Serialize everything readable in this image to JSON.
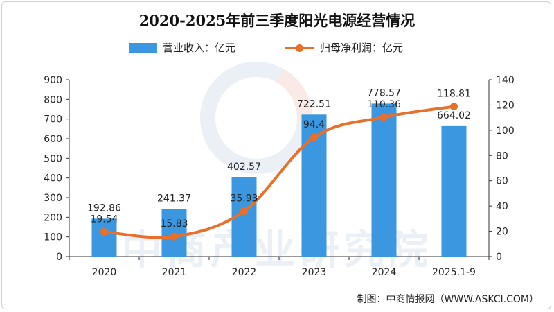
{
  "title": "2020-2025年前三季度阳光电源经营情况",
  "source": "制图：中商情报网（WWW.ASKCI.COM）",
  "watermark": "中商产业研究院",
  "chart_data": {
    "type": "bar",
    "categories": [
      "2020",
      "2021",
      "2022",
      "2023",
      "2024",
      "2025.1-9"
    ],
    "series": [
      {
        "name": "营业收入：亿元",
        "type": "bar",
        "axis": "left",
        "color": "#3b97e0",
        "values": [
          192.86,
          241.37,
          402.57,
          722.51,
          778.57,
          664.02
        ],
        "labels": [
          "192.86",
          "241.37",
          "402.57",
          "722.51",
          "778.57",
          "664.02"
        ]
      },
      {
        "name": "归母净利润：亿元",
        "type": "line",
        "axis": "right",
        "color": "#e8702b",
        "values": [
          19.54,
          15.83,
          35.93,
          94.4,
          110.36,
          118.81
        ],
        "labels": [
          "19.54",
          "15.83",
          "35.93",
          "94.4",
          "110.36",
          "118.81"
        ]
      }
    ],
    "y_left": {
      "min": 0,
      "max": 900,
      "step": 100,
      "ticks": [
        "0",
        "100",
        "200",
        "300",
        "400",
        "500",
        "600",
        "700",
        "800",
        "900"
      ]
    },
    "y_right": {
      "min": 0,
      "max": 140,
      "step": 20,
      "ticks": [
        "0",
        "20",
        "40",
        "60",
        "80",
        "100",
        "120",
        "140"
      ]
    },
    "grid": false,
    "legend_position": "top"
  }
}
